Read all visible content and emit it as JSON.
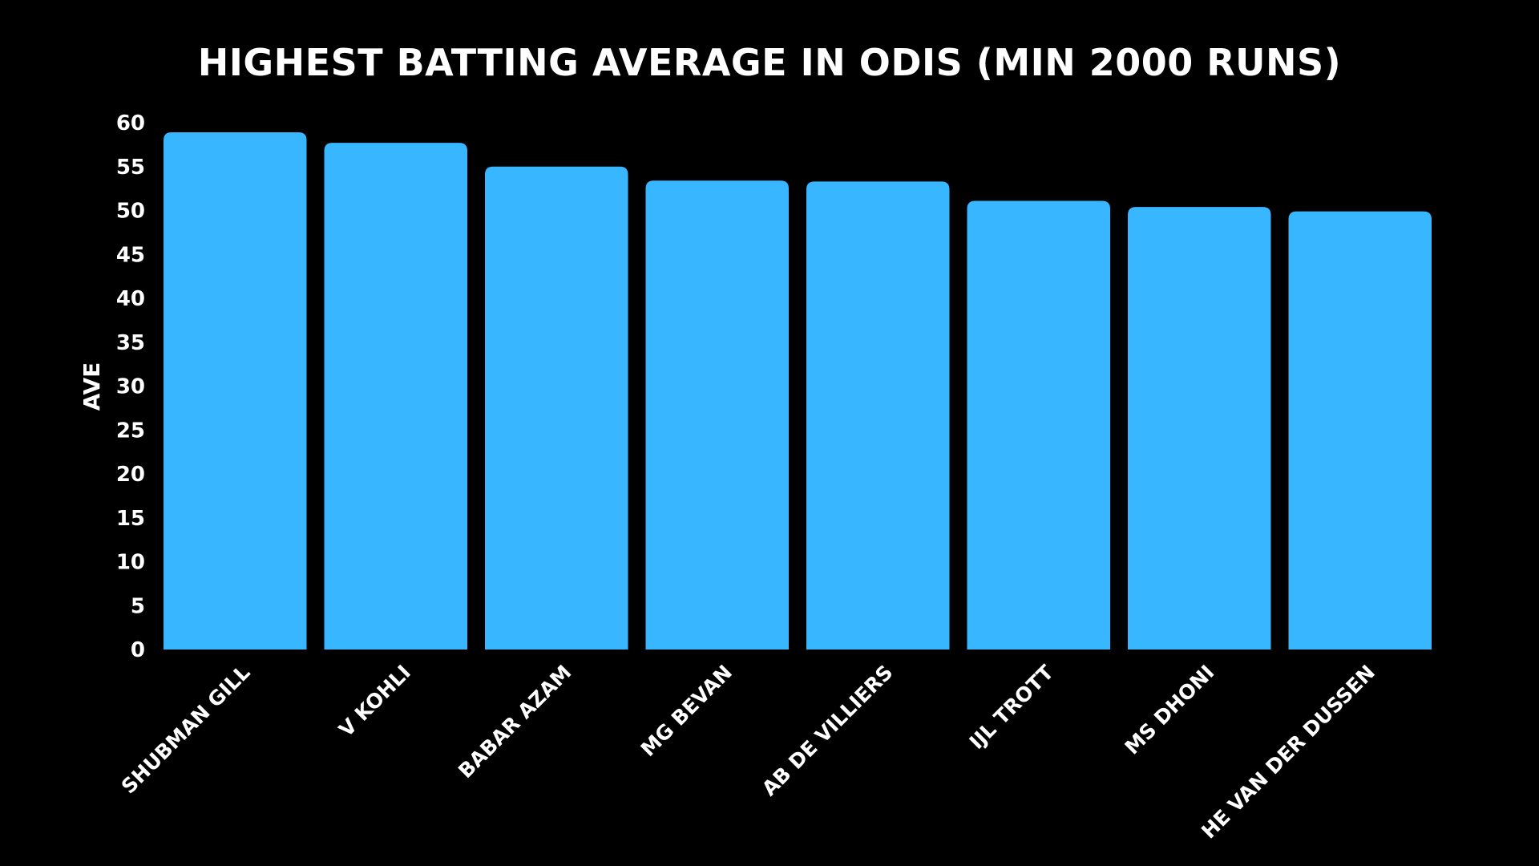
{
  "chart_data": {
    "type": "bar",
    "title": "HIGHEST BATTING AVERAGE IN ODIS (MIN 2000 RUNS)",
    "xlabel": "",
    "ylabel": "AVE",
    "ylim": [
      0,
      60
    ],
    "yticks": [
      "0",
      "5",
      "10",
      "15",
      "20",
      "25",
      "30",
      "35",
      "40",
      "45",
      "50",
      "55",
      "60"
    ],
    "grid": false,
    "legend": "none",
    "bar_color": "#38b6ff",
    "background": "#000000",
    "text_color": "#ffffff",
    "categories": [
      "SHUBMAN GILL",
      "V KOHLI",
      "BABAR AZAM",
      "MG BEVAN",
      "AB DE VILLIERS",
      "IJL TROTT",
      "MS DHONI",
      "HE VAN DER DUSSEN"
    ],
    "values": [
      58.9,
      57.7,
      55.0,
      53.4,
      53.3,
      51.1,
      50.4,
      49.9
    ]
  }
}
